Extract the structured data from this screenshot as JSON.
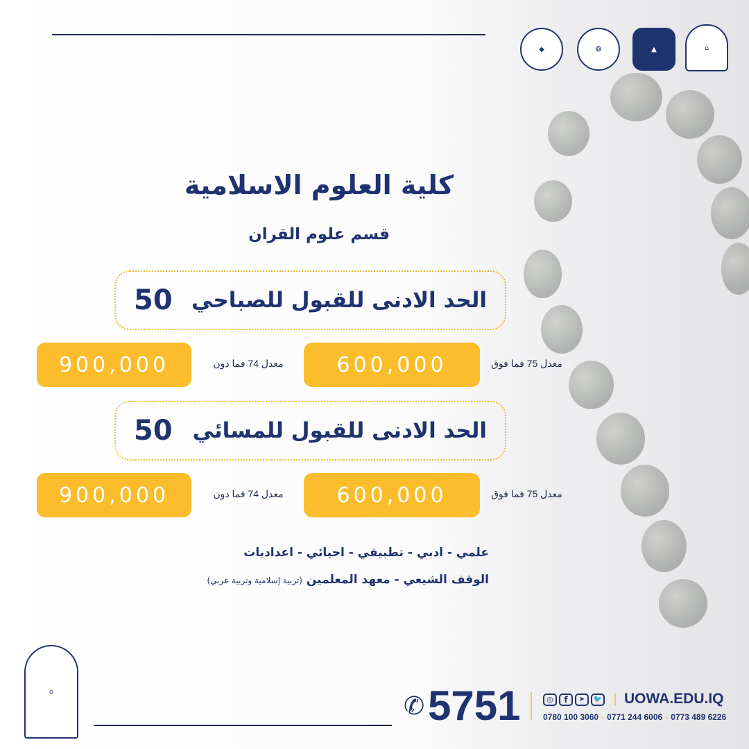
{
  "college_title": "كلية العلوم الاسلامية",
  "department": "قسم علوم القران",
  "morning": {
    "label": "الحد الادنى للقبول للصباحي",
    "min": "50",
    "fee_high_label": "معدل 75 فما فوق",
    "fee_high": "600,000",
    "fee_low_label": "معدل 74 فما دون",
    "fee_low": "900,000"
  },
  "evening": {
    "label": "الحد الادنى للقبول للمسائي",
    "min": "50",
    "fee_high_label": "معدل 75 فما فوق",
    "fee_high": "600,000",
    "fee_low_label": "معدل 74 فما دون",
    "fee_low": "900,000"
  },
  "eligibility": {
    "line1": "علمي - ادبي - تطبيقي - احيائي - اعداديات",
    "line2": "الوقف الشيعي - معهد المعلمين",
    "line2_note": "(تربية إسلامية وتربية عربي)"
  },
  "footer": {
    "hotline": "5751",
    "website": "UOWA.EDU.IQ",
    "phones": [
      "0780 100 3060",
      "0771 244 6006",
      "0773 489 6226"
    ],
    "social_icons": [
      "instagram-icon",
      "facebook-icon",
      "telegram-icon",
      "twitter-icon"
    ]
  },
  "colors": {
    "navy": "#1f3370",
    "yellow": "#fbbd2c"
  }
}
